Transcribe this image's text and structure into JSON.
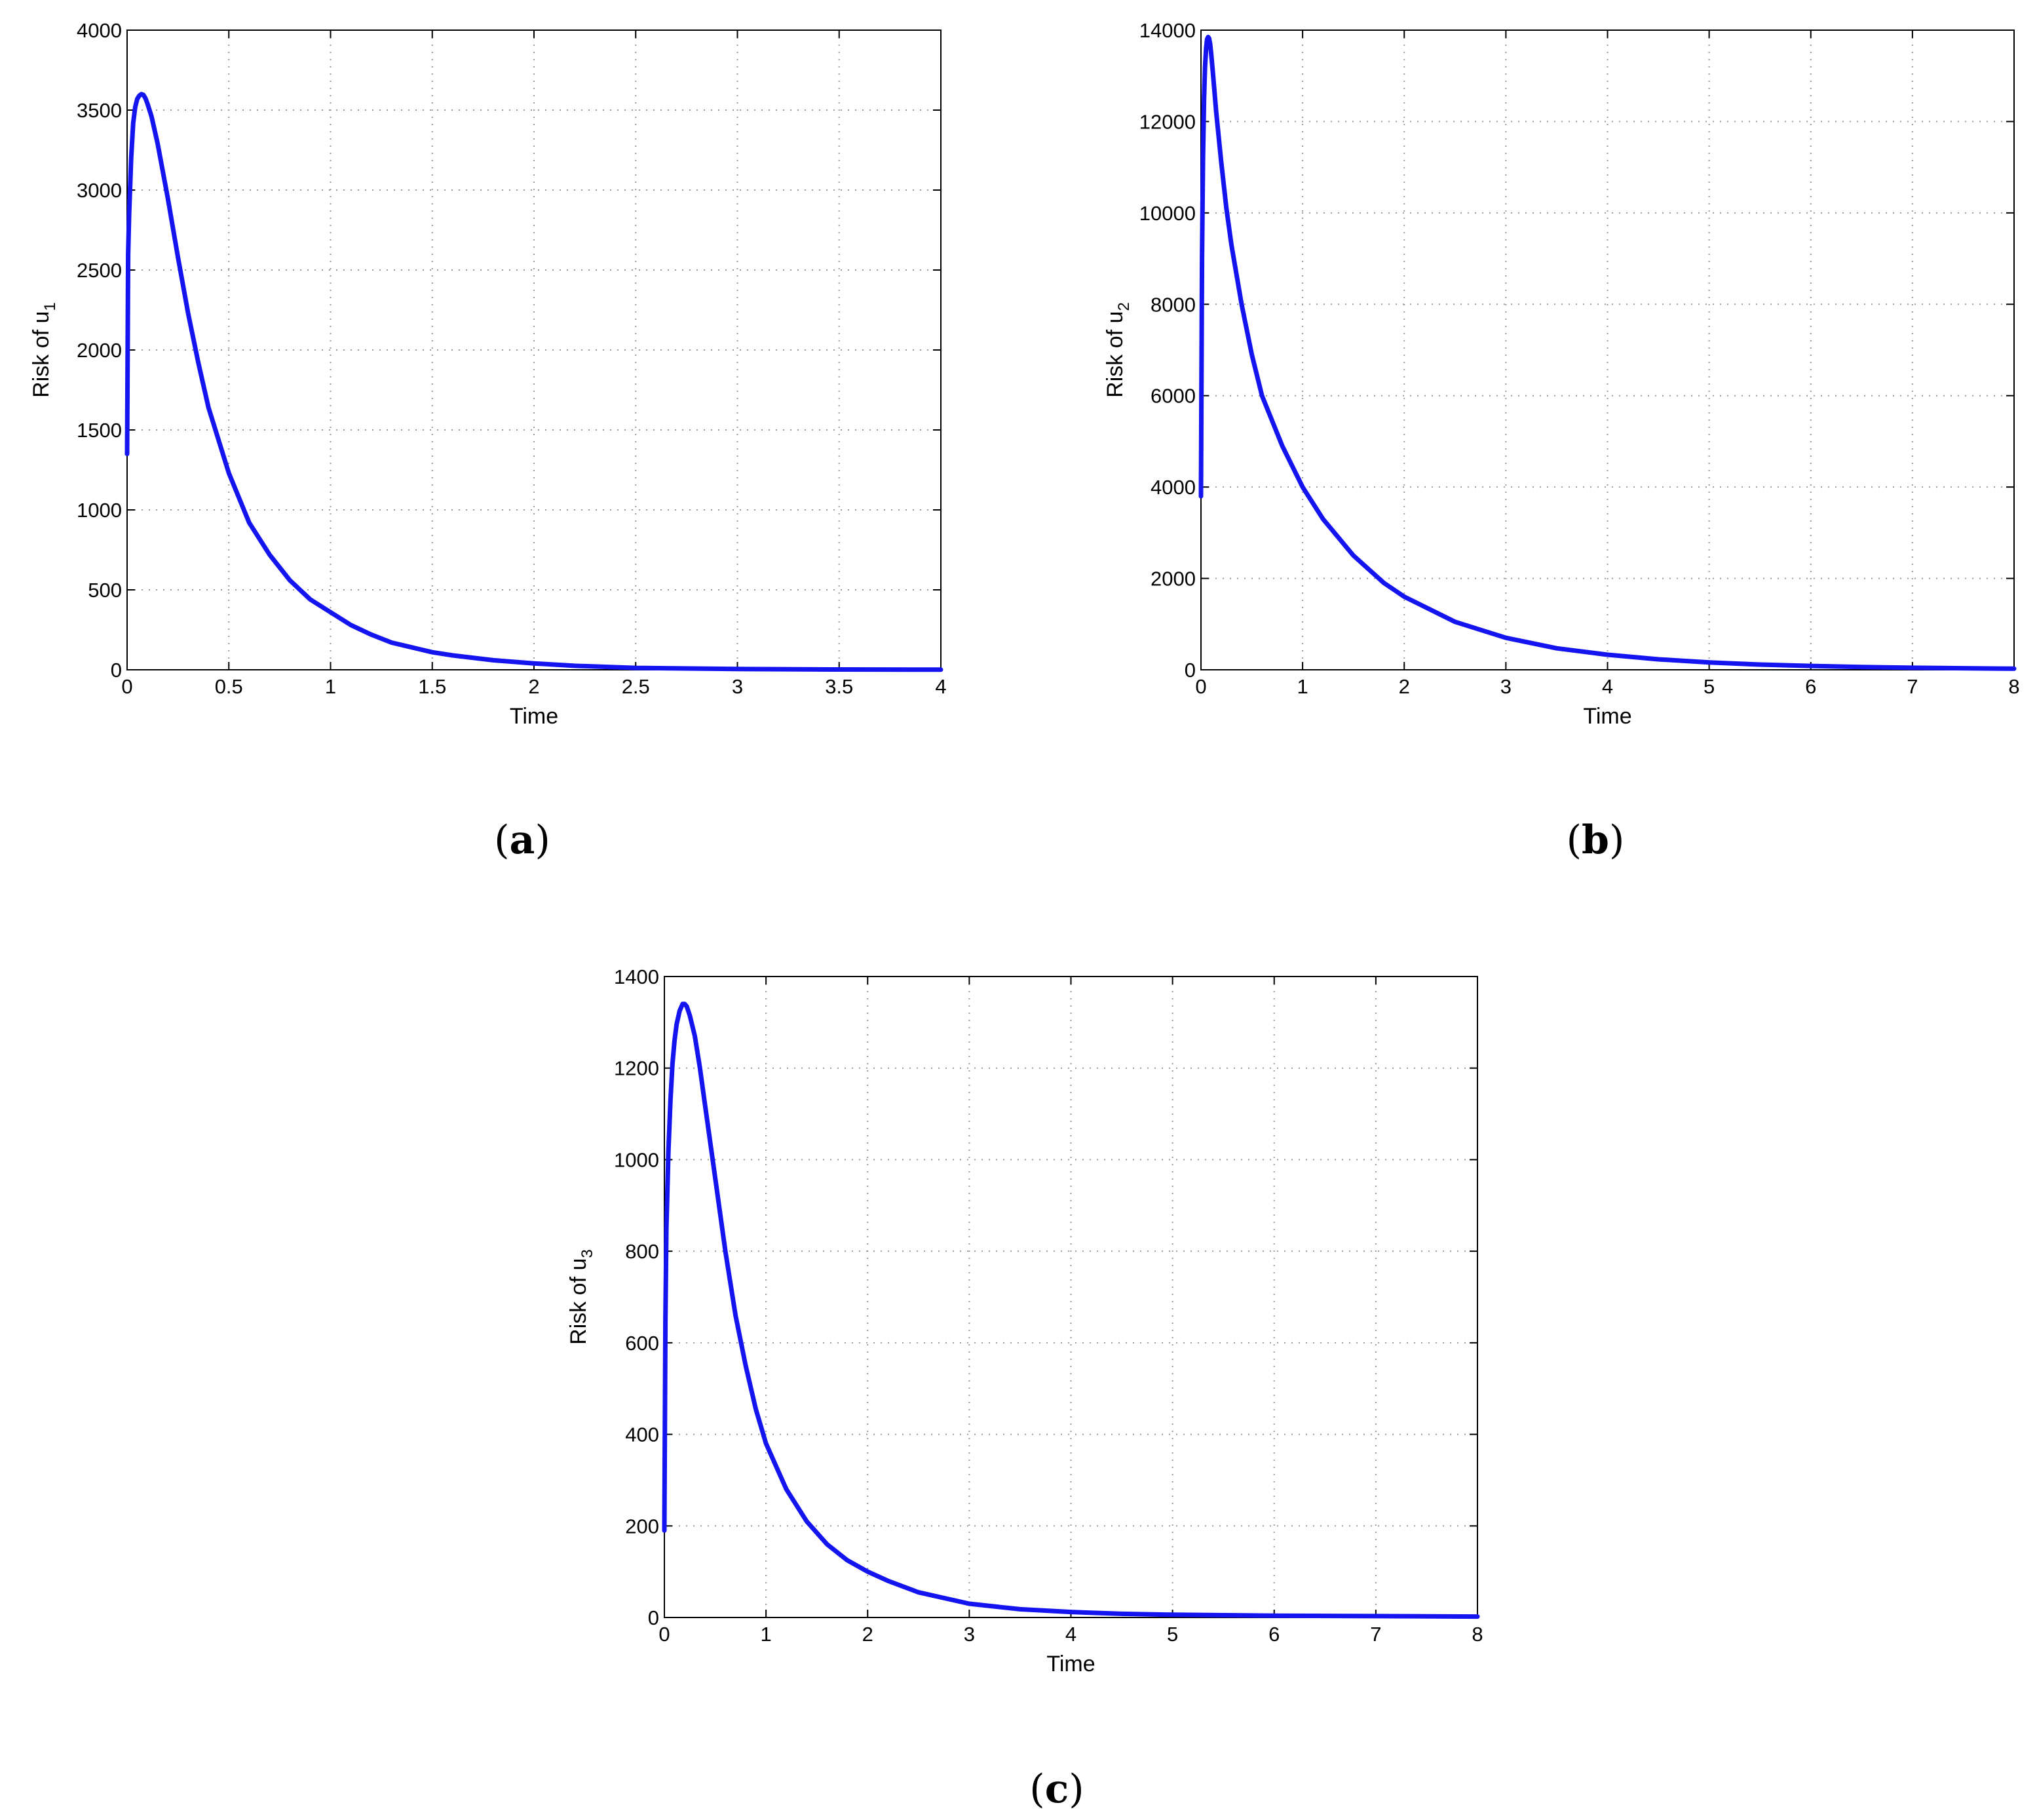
{
  "figure": {
    "panel_labels": [
      {
        "open": "(",
        "letter": "a",
        "close": ")"
      },
      {
        "open": "(",
        "letter": "b",
        "close": ")"
      },
      {
        "open": "(",
        "letter": "c",
        "close": ")"
      }
    ]
  },
  "chart_data": [
    {
      "type": "line",
      "panel": "a",
      "xlabel": "Time",
      "ylabel_main": "Risk of u",
      "ylabel_sub": "1",
      "xlim": [
        0,
        4
      ],
      "ylim": [
        0,
        4000
      ],
      "xticks": [
        0,
        0.5,
        1,
        1.5,
        2,
        2.5,
        3,
        3.5,
        4
      ],
      "yticks": [
        0,
        500,
        1000,
        1500,
        2000,
        2500,
        3000,
        3500,
        4000
      ],
      "grid": true,
      "line_color": "#1414f0",
      "series": [
        {
          "x": [
            0,
            0.005,
            0.01,
            0.02,
            0.03,
            0.04,
            0.05,
            0.06,
            0.07,
            0.08,
            0.09,
            0.1,
            0.12,
            0.15,
            0.2,
            0.25,
            0.3,
            0.35,
            0.4,
            0.5,
            0.6,
            0.7,
            0.8,
            0.9,
            1.0,
            1.1,
            1.2,
            1.3,
            1.4,
            1.5,
            1.6,
            1.8,
            2.0,
            2.2,
            2.5,
            3.0,
            3.5,
            4.0
          ],
          "y": [
            1350,
            2600,
            2850,
            3200,
            3420,
            3520,
            3570,
            3590,
            3600,
            3595,
            3575,
            3540,
            3460,
            3290,
            2950,
            2580,
            2230,
            1920,
            1640,
            1230,
            920,
            720,
            560,
            440,
            360,
            280,
            220,
            170,
            140,
            110,
            90,
            60,
            40,
            25,
            12,
            5,
            2,
            1
          ]
        }
      ]
    },
    {
      "type": "line",
      "panel": "b",
      "xlabel": "Time",
      "ylabel_main": "Risk of u",
      "ylabel_sub": "2",
      "xlim": [
        0,
        8
      ],
      "ylim": [
        0,
        14000
      ],
      "xticks": [
        0,
        1,
        2,
        3,
        4,
        5,
        6,
        7,
        8
      ],
      "yticks": [
        0,
        2000,
        4000,
        6000,
        8000,
        10000,
        12000,
        14000
      ],
      "grid": true,
      "line_color": "#1414f0",
      "series": [
        {
          "x": [
            0,
            0.005,
            0.01,
            0.02,
            0.03,
            0.04,
            0.05,
            0.06,
            0.07,
            0.08,
            0.09,
            0.1,
            0.12,
            0.15,
            0.2,
            0.25,
            0.3,
            0.4,
            0.5,
            0.6,
            0.8,
            1.0,
            1.2,
            1.5,
            1.8,
            2.0,
            2.5,
            3.0,
            3.5,
            4.0,
            4.5,
            5.0,
            5.5,
            6.0,
            6.5,
            7.0,
            7.5,
            8.0
          ],
          "y": [
            3800,
            6500,
            9000,
            11200,
            12500,
            13200,
            13600,
            13800,
            13850,
            13820,
            13700,
            13500,
            13000,
            12200,
            11100,
            10100,
            9300,
            8000,
            6900,
            6000,
            4900,
            4000,
            3300,
            2500,
            1900,
            1600,
            1050,
            700,
            470,
            330,
            230,
            160,
            115,
            85,
            60,
            45,
            35,
            25
          ]
        }
      ]
    },
    {
      "type": "line",
      "panel": "c",
      "xlabel": "Time",
      "ylabel_main": "Risk of u",
      "ylabel_sub": "3",
      "xlim": [
        0,
        8
      ],
      "ylim": [
        0,
        1400
      ],
      "xticks": [
        0,
        1,
        2,
        3,
        4,
        5,
        6,
        7,
        8
      ],
      "yticks": [
        0,
        200,
        400,
        600,
        800,
        1000,
        1200,
        1400
      ],
      "grid": true,
      "line_color": "#1414f0",
      "series": [
        {
          "x": [
            0,
            0.01,
            0.02,
            0.04,
            0.06,
            0.08,
            0.1,
            0.12,
            0.15,
            0.18,
            0.2,
            0.22,
            0.25,
            0.3,
            0.35,
            0.4,
            0.5,
            0.6,
            0.7,
            0.8,
            0.9,
            1.0,
            1.2,
            1.4,
            1.6,
            1.8,
            2.0,
            2.2,
            2.5,
            3.0,
            3.5,
            4.0,
            4.5,
            5.0,
            5.5,
            6.0,
            7.0,
            8.0
          ],
          "y": [
            190,
            650,
            850,
            1020,
            1130,
            1210,
            1260,
            1295,
            1325,
            1340,
            1340,
            1335,
            1315,
            1270,
            1200,
            1120,
            960,
            800,
            660,
            550,
            455,
            380,
            280,
            210,
            160,
            125,
            100,
            80,
            55,
            30,
            18,
            12,
            8,
            6,
            5,
            4,
            3,
            2
          ]
        }
      ]
    }
  ]
}
